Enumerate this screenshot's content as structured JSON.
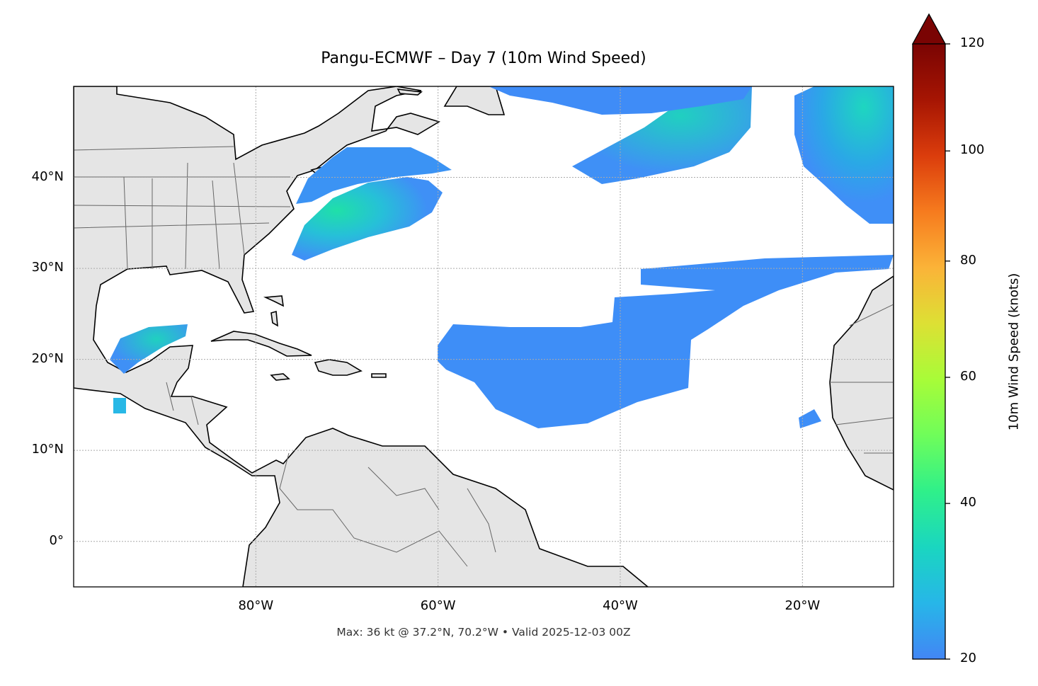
{
  "title": "Pangu-ECMWF – Day 7 (10m Wind Speed)",
  "subtitle": "Max: 36 kt @ 37.2°N, 70.2°W • Valid 2025-12-03 00Z",
  "map": {
    "extent": {
      "lon": [
        -100,
        -10
      ],
      "lat": [
        -5,
        50
      ]
    },
    "lat_ticks": [
      {
        "value": 40,
        "label": "40°N"
      },
      {
        "value": 30,
        "label": "30°N"
      },
      {
        "value": 20,
        "label": "20°N"
      },
      {
        "value": 10,
        "label": "10°N"
      },
      {
        "value": 0,
        "label": "0°"
      }
    ],
    "lon_ticks": [
      {
        "value": -80,
        "label": "80°W"
      },
      {
        "value": -60,
        "label": "60°W"
      },
      {
        "value": -40,
        "label": "40°W"
      },
      {
        "value": -20,
        "label": "20°W"
      }
    ],
    "gridlines": true,
    "land_color": "#e5e5e5",
    "coast_color": "#000000",
    "border_color": "#666666"
  },
  "colorbar": {
    "label": "10m Wind Speed (knots)",
    "ticks": [
      "20",
      "40",
      "60",
      "80",
      "100",
      "120"
    ],
    "extend": "max",
    "colormap_stops": [
      "#4286f5",
      "#27b6e8",
      "#1ad6c0",
      "#2ff08a",
      "#6ffd5a",
      "#a8fc38",
      "#dde034",
      "#fbb338",
      "#f67b1e",
      "#db3d0c",
      "#a61503",
      "#7a0403"
    ]
  },
  "max_wind": {
    "value_kt": 36,
    "lat": 37.2,
    "lon": -70.2
  }
}
